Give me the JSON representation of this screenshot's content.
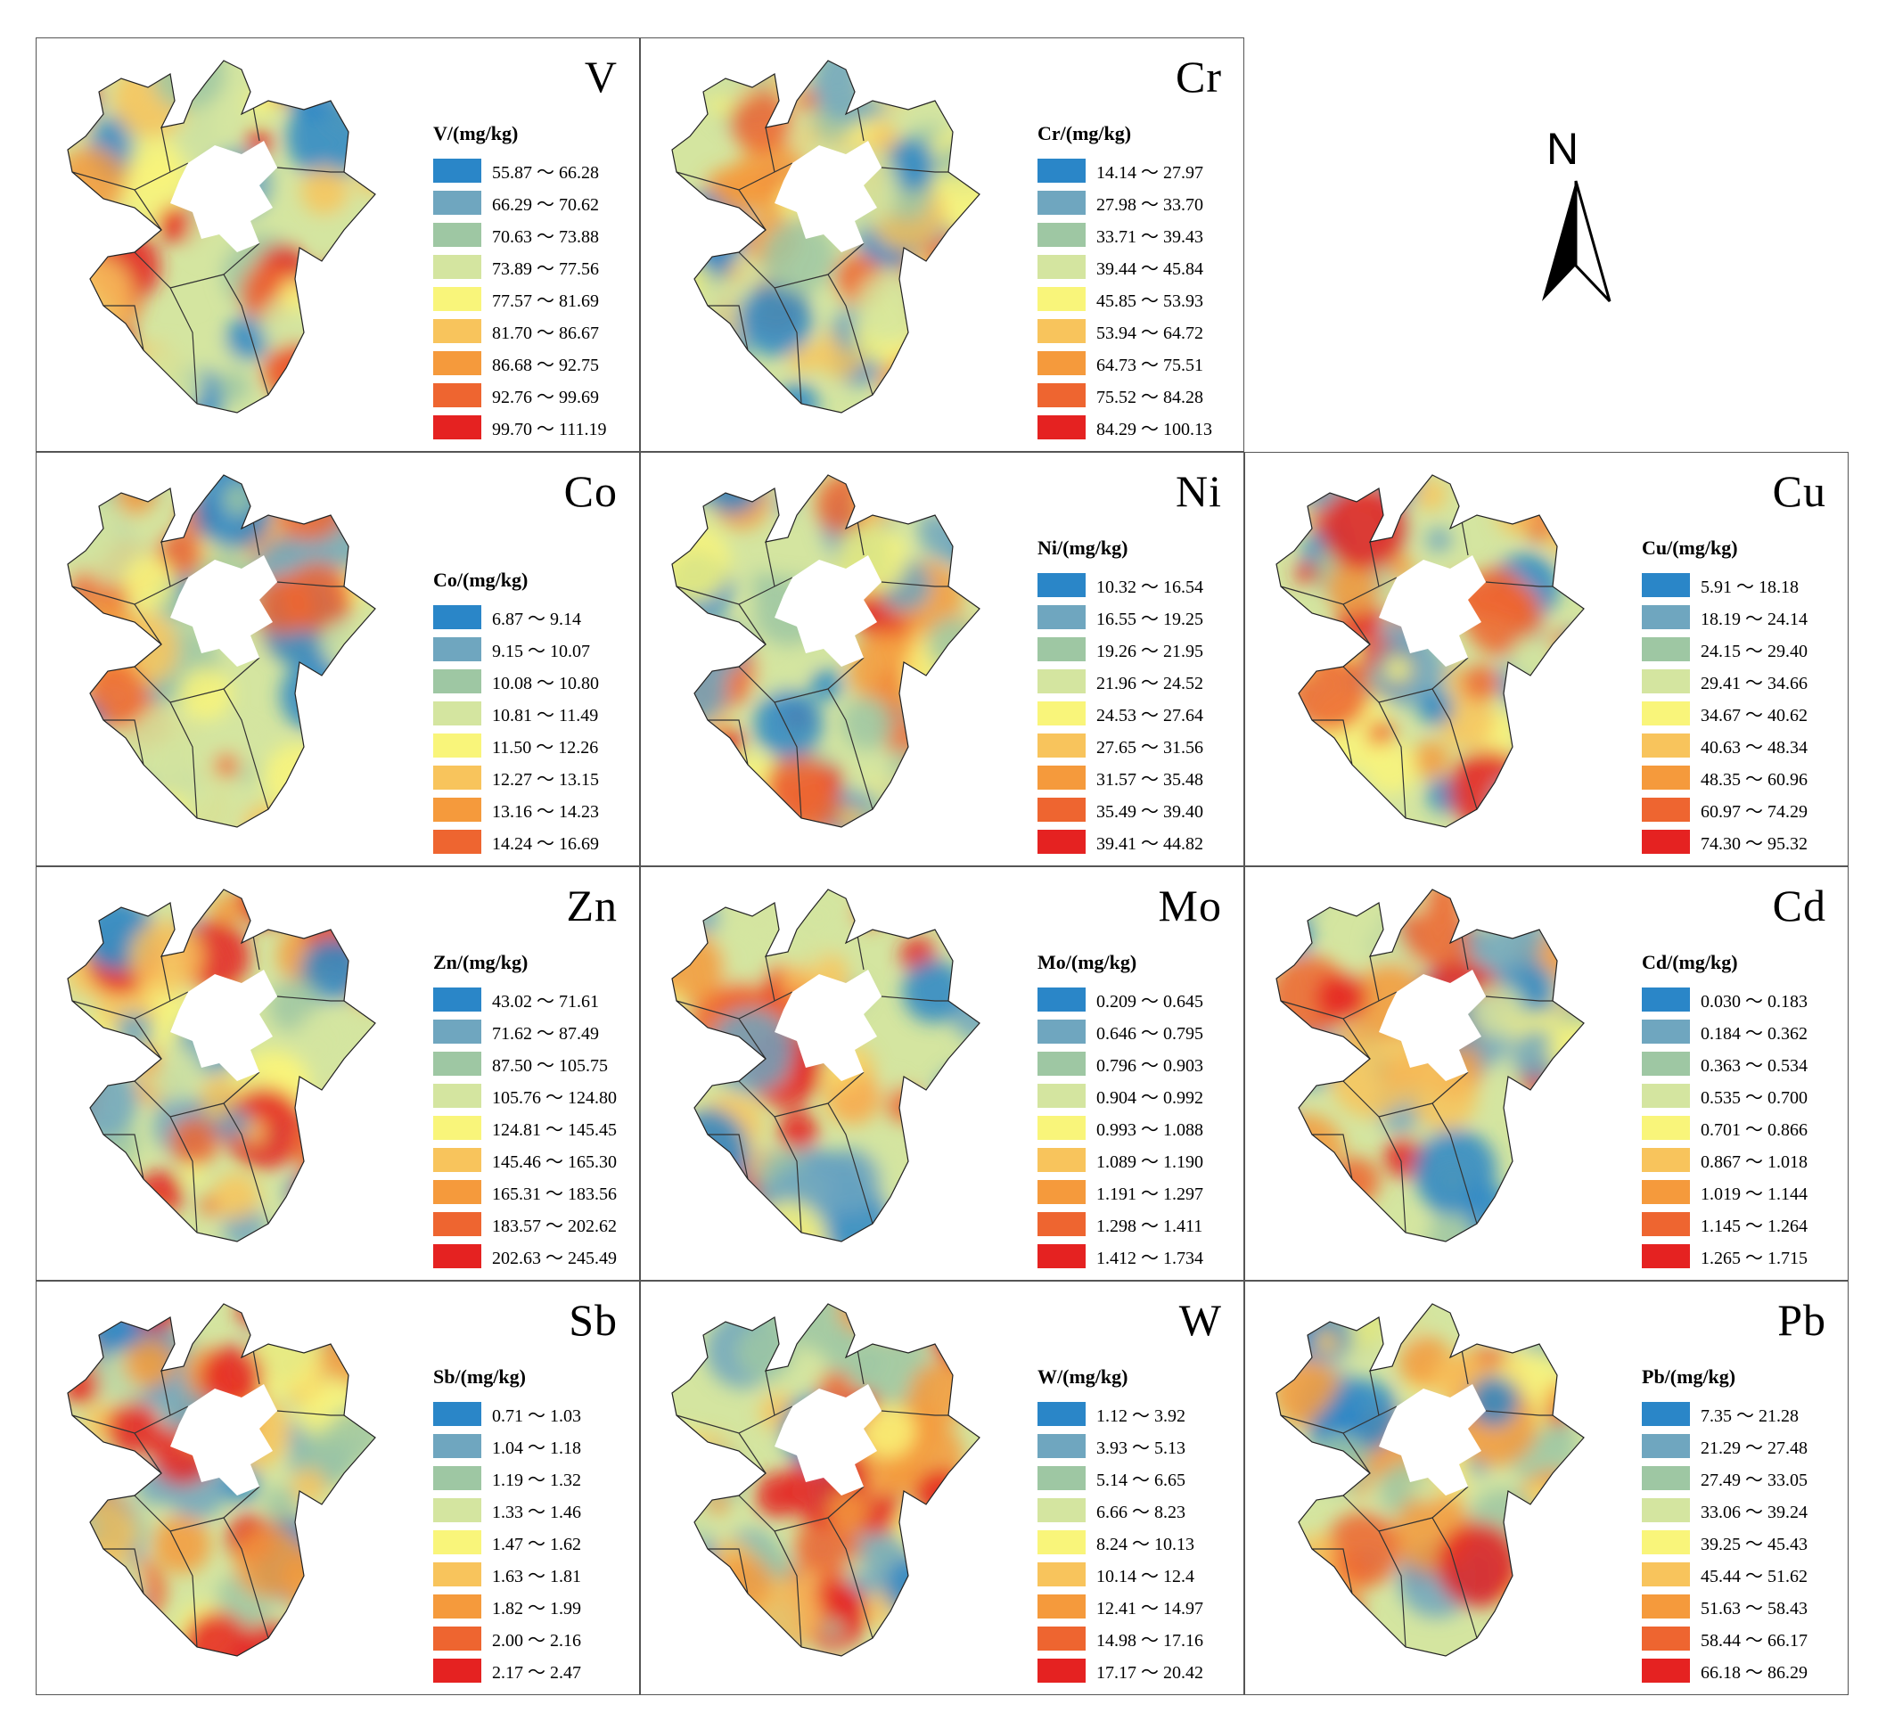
{
  "north_label": "N",
  "colors": [
    "#2a86c8",
    "#6fa6bf",
    "#9ec7a3",
    "#d4e5a0",
    "#f9f57a",
    "#f8c45c",
    "#f59a3c",
    "#ee6530",
    "#e52221"
  ],
  "panels": [
    {
      "element": "V",
      "legend_title": "V/(mg/kg)",
      "ranges": [
        "55.87 ～ 66.28",
        "66.29 ～ 70.62",
        "70.63 ～ 73.88",
        "73.89 ～ 77.56",
        "77.57 ～ 81.69",
        "81.70 ～ 86.67",
        "86.68 ～ 92.75",
        "92.76 ～ 99.69",
        "99.70 ～ 111.19"
      ]
    },
    {
      "element": "Cr",
      "legend_title": "Cr/(mg/kg)",
      "ranges": [
        "14.14 ～ 27.97",
        "27.98 ～ 33.70",
        "33.71 ～ 39.43",
        "39.44 ～ 45.84",
        "45.85 ～ 53.93",
        "53.94 ～ 64.72",
        "64.73 ～ 75.51",
        "75.52 ～ 84.28",
        "84.29 ～ 100.13"
      ]
    },
    {
      "element": "Co",
      "legend_title": "Co/(mg/kg)",
      "ranges": [
        "6.87 ～ 9.14",
        "9.15 ～ 10.07",
        "10.08 ～ 10.80",
        "10.81 ～ 11.49",
        "11.50 ～ 12.26",
        "12.27 ～ 13.15",
        "13.16 ～ 14.23",
        "14.24 ～ 16.69"
      ]
    },
    {
      "element": "Ni",
      "legend_title": "Ni/(mg/kg)",
      "ranges": [
        "10.32 ～ 16.54",
        "16.55 ～ 19.25",
        "19.26 ～ 21.95",
        "21.96 ～ 24.52",
        "24.53 ～ 27.64",
        "27.65 ～ 31.56",
        "31.57 ～ 35.48",
        "35.49 ～ 39.40",
        "39.41 ～ 44.82"
      ]
    },
    {
      "element": "Cu",
      "legend_title": "Cu/(mg/kg)",
      "ranges": [
        "5.91 ～ 18.18",
        "18.19 ～ 24.14",
        "24.15 ～ 29.40",
        "29.41 ～ 34.66",
        "34.67 ～ 40.62",
        "40.63 ～ 48.34",
        "48.35 ～ 60.96",
        "60.97 ～ 74.29",
        "74.30 ～ 95.32"
      ]
    },
    {
      "element": "Zn",
      "legend_title": "Zn/(mg/kg)",
      "ranges": [
        "43.02 ～ 71.61",
        "71.62 ～ 87.49",
        "87.50 ～ 105.75",
        "105.76 ～ 124.80",
        "124.81 ～ 145.45",
        "145.46 ～ 165.30",
        "165.31 ～ 183.56",
        "183.57 ～ 202.62",
        "202.63 ～ 245.49"
      ]
    },
    {
      "element": "Mo",
      "legend_title": "Mo/(mg/kg)",
      "ranges": [
        "0.209 ～ 0.645",
        "0.646 ～ 0.795",
        "0.796 ～ 0.903",
        "0.904 ～ 0.992",
        "0.993 ～ 1.088",
        "1.089 ～ 1.190",
        "1.191 ～ 1.297",
        "1.298 ～ 1.411",
        "1.412 ～ 1.734"
      ]
    },
    {
      "element": "Cd",
      "legend_title": "Cd/(mg/kg)",
      "ranges": [
        "0.030 ～ 0.183",
        "0.184 ～ 0.362",
        "0.363 ～ 0.534",
        "0.535 ～ 0.700",
        "0.701 ～ 0.866",
        "0.867 ～ 1.018",
        "1.019 ～ 1.144",
        "1.145 ～ 1.264",
        "1.265 ～ 1.715"
      ]
    },
    {
      "element": "Sb",
      "legend_title": "Sb/(mg/kg)",
      "ranges": [
        "0.71 ～ 1.03",
        "1.04 ～ 1.18",
        "1.19 ～ 1.32",
        "1.33 ～ 1.46",
        "1.47 ～ 1.62",
        "1.63 ～ 1.81",
        "1.82 ～ 1.99",
        "2.00 ～ 2.16",
        "2.17 ～ 2.47"
      ]
    },
    {
      "element": "W",
      "legend_title": "W/(mg/kg)",
      "ranges": [
        "1.12 ～ 3.92",
        "3.93 ～ 5.13",
        "5.14 ～ 6.65",
        "6.66 ～ 8.23",
        "8.24 ～ 10.13",
        "10.14 ～ 12.4",
        "12.41 ～ 14.97",
        "14.98 ～ 17.16",
        "17.17 ～ 20.42"
      ]
    },
    {
      "element": "Pb",
      "legend_title": "Pb/(mg/kg)",
      "ranges": [
        "7.35 ～ 21.28",
        "21.29 ～ 27.48",
        "27.49 ～ 33.05",
        "33.06 ～ 39.24",
        "39.25 ～ 45.43",
        "45.44 ～ 51.62",
        "51.63 ～ 58.43",
        "58.44 ～ 66.17",
        "66.18 ～ 86.29"
      ]
    }
  ]
}
